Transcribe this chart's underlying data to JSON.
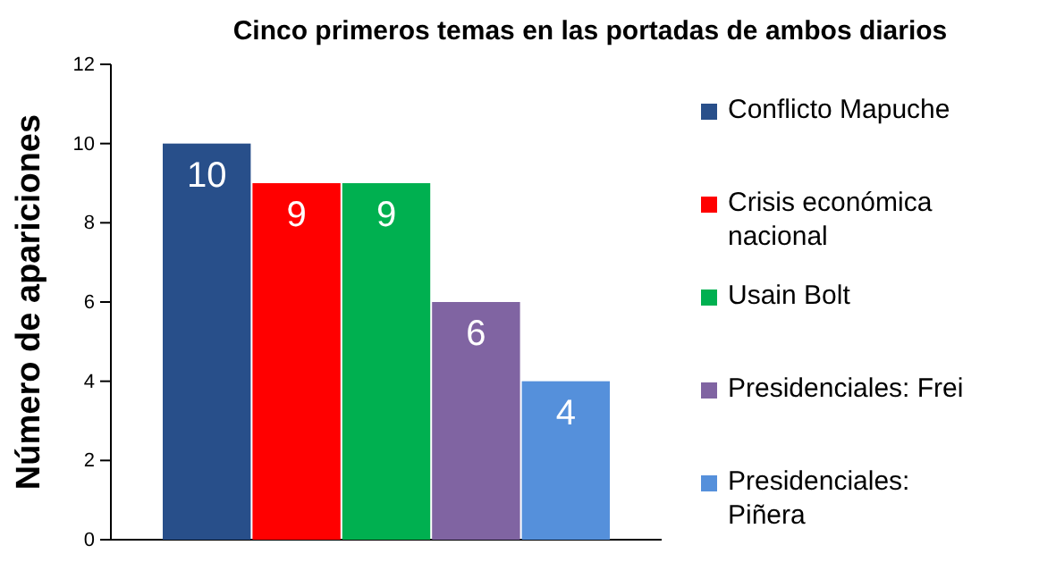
{
  "chart_data": {
    "type": "bar",
    "title": "Cinco primeros temas en las portadas de ambos diarios",
    "ylabel": "Número de apariciones",
    "categories": [
      null
    ],
    "series": [
      {
        "name": "Conflicto Mapuche",
        "color": "#284f8a",
        "values": [
          10
        ]
      },
      {
        "name": "Crisis económica nacional",
        "color": "#ff0000",
        "values": [
          9
        ]
      },
      {
        "name": "Usain Bolt",
        "color": "#00b050",
        "values": [
          9
        ]
      },
      {
        "name": "Presidenciales: Frei",
        "color": "#8064a2",
        "values": [
          6
        ]
      },
      {
        "name": "Presidenciales: Piñera",
        "color": "#5590db",
        "values": [
          4
        ]
      }
    ],
    "ylim": [
      0,
      12
    ],
    "yticks": [
      0,
      2,
      4,
      6,
      8,
      10,
      12
    ],
    "grid": false,
    "legend": "right",
    "data_labels": true
  }
}
